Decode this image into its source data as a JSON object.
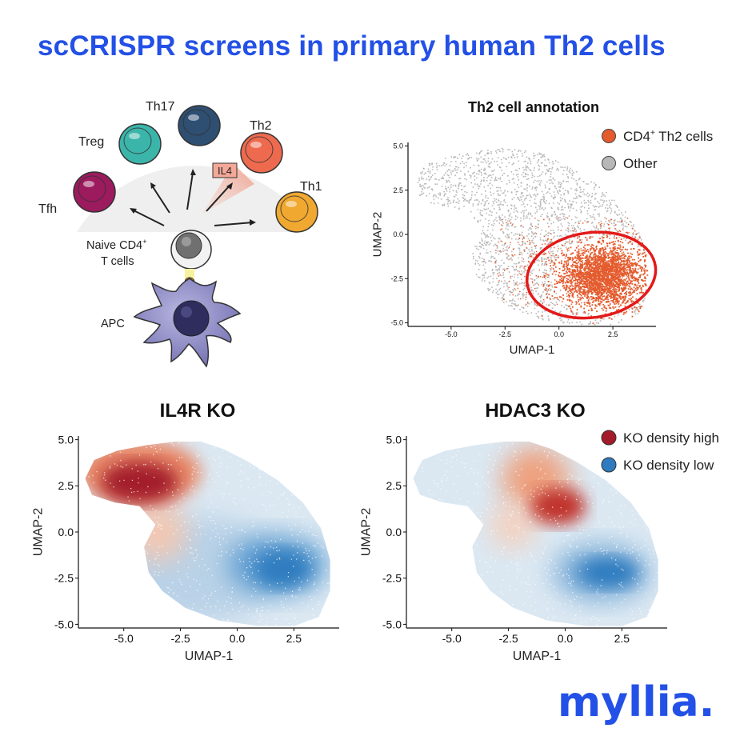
{
  "page": {
    "title": "scCRISPR screens in primary human Th2 cells"
  },
  "colors": {
    "brand_blue": "#2350e6",
    "th2_orange": "#e45b2d",
    "other_gray": "#b8b8b8",
    "ko_high": "#a31a2a",
    "ko_low": "#2f7bbf",
    "circle_red": "#e31a1a"
  },
  "diagram": {
    "cells": [
      {
        "id": "tfh",
        "label": "Tfh",
        "color": "#9c1a5e"
      },
      {
        "id": "treg",
        "label": "Treg",
        "color": "#3bb5aa"
      },
      {
        "id": "th17",
        "label": "Th17",
        "color": "#2e4e72"
      },
      {
        "id": "th2",
        "label": "Th2",
        "color": "#ee6a4e"
      },
      {
        "id": "th1",
        "label": "Th1",
        "color": "#f0a830"
      }
    ],
    "naive_label_line1": "Naive CD4",
    "naive_label_sup": "+",
    "naive_label_line2": "T cells",
    "apc_label": "APC",
    "cytokine_label": "IL4"
  },
  "chart_data": [
    {
      "id": "annotation",
      "type": "scatter",
      "title": "Th2 cell annotation",
      "xlabel": "UMAP-1",
      "ylabel": "UMAP-2",
      "xlim": [
        -7,
        4.5
      ],
      "ylim": [
        -5.2,
        5.2
      ],
      "xticks": [
        "-5.0",
        "-2.5",
        "0.0",
        "2.5"
      ],
      "yticks": [
        "5.0",
        "2.5",
        "0.0",
        "-2.5",
        "-5.0"
      ],
      "series": [
        {
          "name": "CD4+ Th2 cells",
          "legend_main": "CD4",
          "legend_sup": "+",
          "legend_rest": " Th2 cells",
          "color": "#e45b2d",
          "cluster_center": [
            2.0,
            -2.3
          ]
        },
        {
          "name": "Other",
          "legend_main": "Other",
          "legend_sup": "",
          "legend_rest": "",
          "color": "#b8b8b8",
          "cluster_center": [
            -3.0,
            2.6
          ]
        }
      ],
      "highlight_ellipse": {
        "center": [
          1.5,
          -2.3
        ],
        "rx": 3.0,
        "ry": 2.4
      }
    },
    {
      "id": "il4r",
      "type": "heatmap",
      "title": "IL4R KO",
      "xlabel": "UMAP-1",
      "ylabel": "UMAP-2",
      "xlim": [
        -7,
        4.5
      ],
      "ylim": [
        -5.2,
        5.2
      ],
      "xticks": [
        "-5.0",
        "-2.5",
        "0.0",
        "2.5"
      ],
      "yticks": [
        "5.0",
        "2.5",
        "0.0",
        "-2.5",
        "-5.0"
      ],
      "density_high_center": [
        -4.3,
        2.7
      ],
      "density_low_center": [
        1.8,
        -1.8
      ]
    },
    {
      "id": "hdac3",
      "type": "heatmap",
      "title": "HDAC3 KO",
      "xlabel": "UMAP-1",
      "ylabel": "UMAP-2",
      "xlim": [
        -7,
        4.5
      ],
      "ylim": [
        -5.2,
        5.2
      ],
      "xticks": [
        "-5.0",
        "-2.5",
        "0.0",
        "2.5"
      ],
      "yticks": [
        "5.0",
        "2.5",
        "0.0",
        "-2.5",
        "-5.0"
      ],
      "legend": [
        {
          "label": "KO density high",
          "color": "#a31a2a"
        },
        {
          "label": "KO density low",
          "color": "#2f7bbf"
        }
      ],
      "density_high_center": [
        -0.3,
        1.4
      ],
      "density_low_center": [
        1.9,
        -2.2
      ]
    }
  ],
  "logo": {
    "text": "myllia."
  }
}
